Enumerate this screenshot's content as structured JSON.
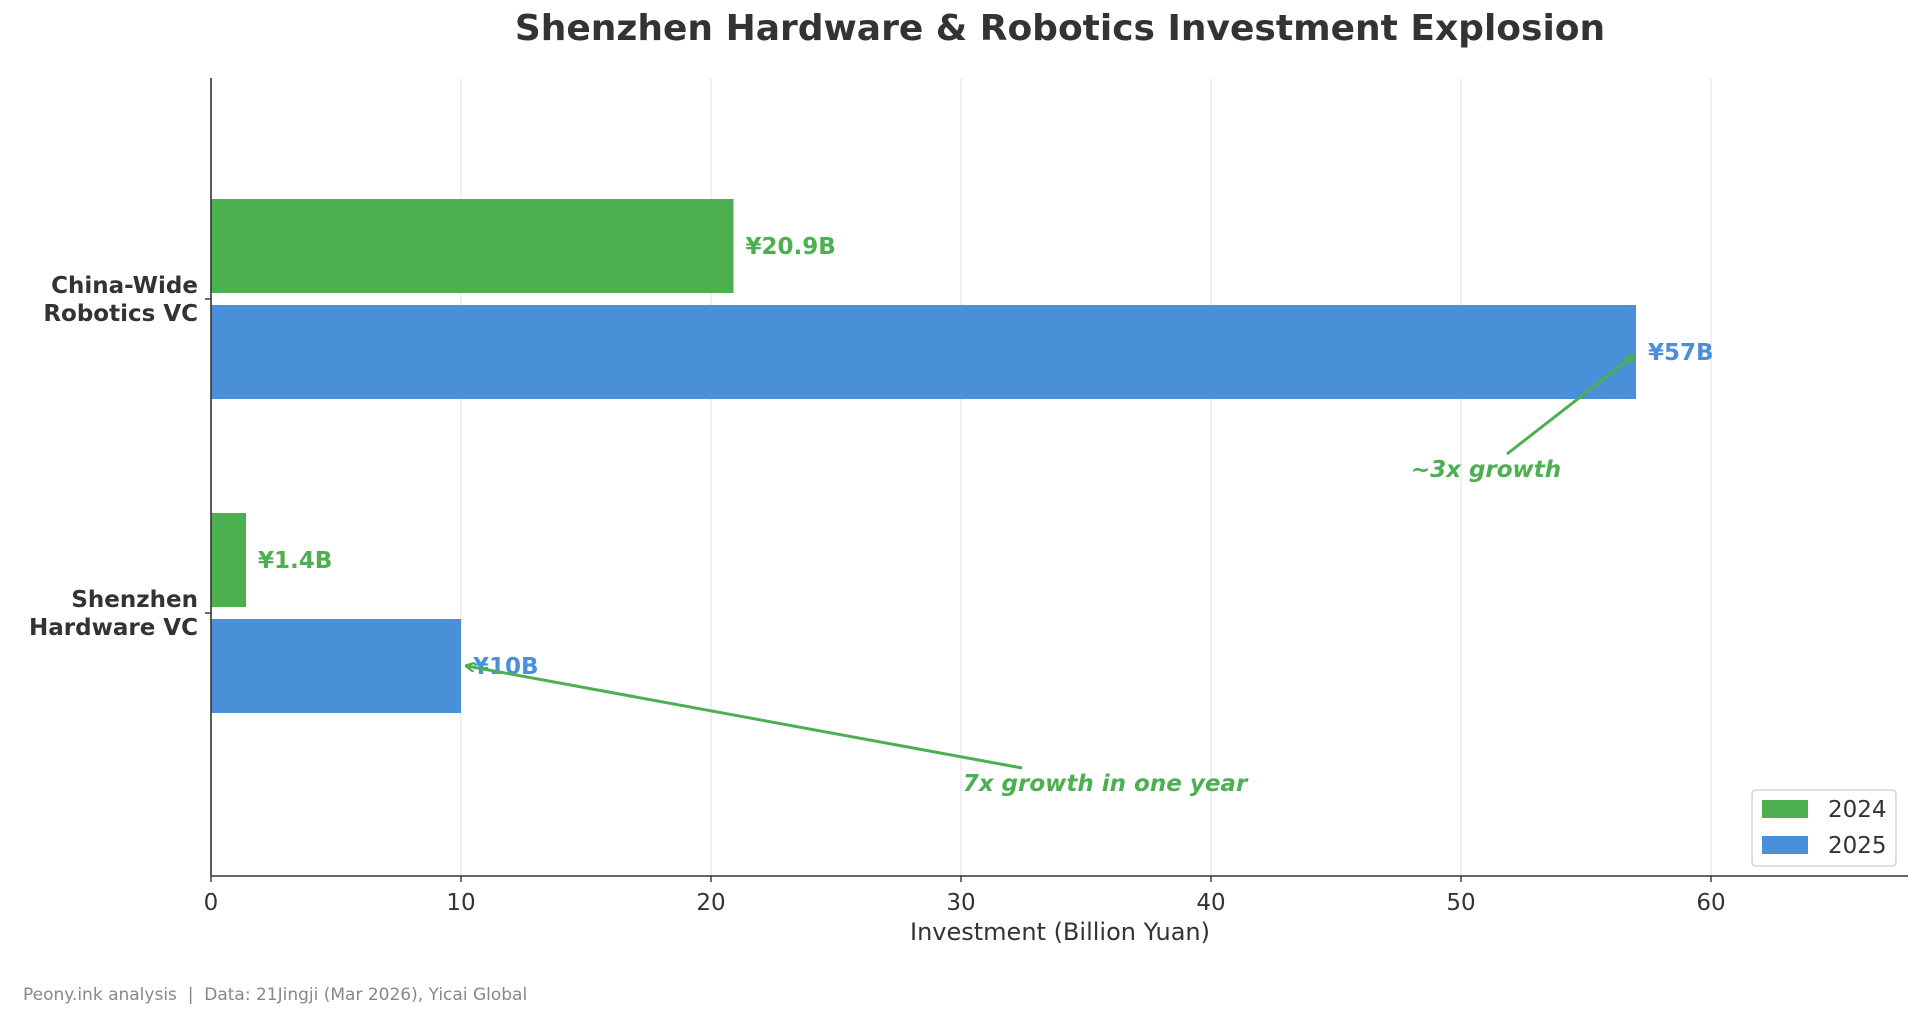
{
  "chart_data": {
    "type": "bar",
    "orientation": "horizontal",
    "title": "Shenzhen Hardware & Robotics Investment Explosion",
    "xlabel": "Investment (Billion Yuan)",
    "ylabel": "",
    "xlim": [
      0,
      68
    ],
    "xticks": [
      0,
      10,
      20,
      30,
      40,
      50,
      60
    ],
    "grid": "vertical",
    "legend_position": "bottom-right",
    "categories": [
      "China-Wide\nRobotics VC",
      "Shenzhen\nHardware VC"
    ],
    "series": [
      {
        "name": "2024",
        "color": "#4caf50",
        "values": [
          20.9,
          1.4
        ],
        "labels": [
          "¥20.9B",
          "¥1.4B"
        ]
      },
      {
        "name": "2025",
        "color": "#4a90d9",
        "values": [
          57,
          10
        ],
        "labels": [
          "¥57B",
          "¥10B"
        ]
      }
    ],
    "annotations": [
      {
        "text": "~3x growth",
        "color": "#4caf50",
        "points_to": {
          "x": 57,
          "category": 0,
          "series": 1
        }
      },
      {
        "text": "7x growth in one year",
        "color": "#4caf50",
        "points_to": {
          "x": 10,
          "category": 1,
          "series": 1
        }
      }
    ]
  },
  "footer": "Peony.ink analysis  |  Data: 21Jingji (Mar 2026), Yicai Global"
}
